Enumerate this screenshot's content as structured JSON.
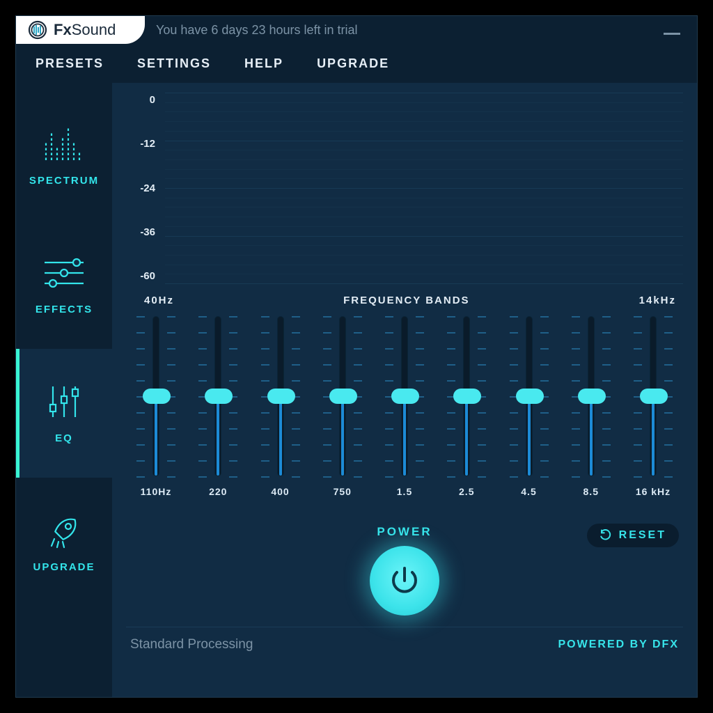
{
  "app": {
    "name_bold": "Fx",
    "name_light": "Sound",
    "trial_text": "You have 6 days 23 hours left in trial",
    "colors": {
      "bg": "#0c2032",
      "panel": "#112c44",
      "accent": "#37e4ea",
      "accent_bright": "#39f4d3",
      "text_dim": "#7c93a6",
      "text": "#e3edf5",
      "grid": "#173a55",
      "slider_fill": "#1c8bd6",
      "slider_track": "#0a1b2a",
      "tick": "#1f5f88"
    }
  },
  "menu": {
    "items": [
      "PRESETS",
      "SETTINGS",
      "HELP",
      "UPGRADE"
    ]
  },
  "sidebar": {
    "tabs": [
      {
        "id": "spectrum",
        "label": "SPECTRUM",
        "icon": "spectrum-bars-icon",
        "active": false
      },
      {
        "id": "effects",
        "label": "EFFECTS",
        "icon": "sliders-horizontal-icon",
        "active": false
      },
      {
        "id": "eq",
        "label": "EQ",
        "icon": "sliders-vertical-icon",
        "active": true
      },
      {
        "id": "upgrade",
        "label": "UPGRADE",
        "icon": "rocket-icon",
        "active": false
      }
    ]
  },
  "graph": {
    "y_ticks": [
      "0",
      "-12",
      "-24",
      "-36",
      "-60"
    ],
    "y_range": [
      -60,
      0
    ],
    "grid_majors_pct": [
      0,
      25,
      50,
      75,
      100
    ],
    "grid_minors_between": 4
  },
  "bands": {
    "left_label": "40Hz",
    "center_label": "FREQUENCY BANDS",
    "right_label": "14kHz",
    "labels": [
      "110Hz",
      "220",
      "400",
      "750",
      "1.5",
      "2.5",
      "4.5",
      "8.5",
      "16 kHz"
    ],
    "values_pct": [
      50,
      50,
      50,
      50,
      50,
      50,
      50,
      50,
      50
    ],
    "tick_rows": 11,
    "slider": {
      "thumb_color": "#49e9ef",
      "track_color": "#0a1b2a",
      "fill_color": "#1c8bd6",
      "tick_color": "#1f5f88"
    }
  },
  "controls": {
    "power_label": "POWER",
    "reset_label": "RESET",
    "power_on": true
  },
  "footer": {
    "mode": "Standard Processing",
    "powered": "POWERED BY DFX"
  }
}
